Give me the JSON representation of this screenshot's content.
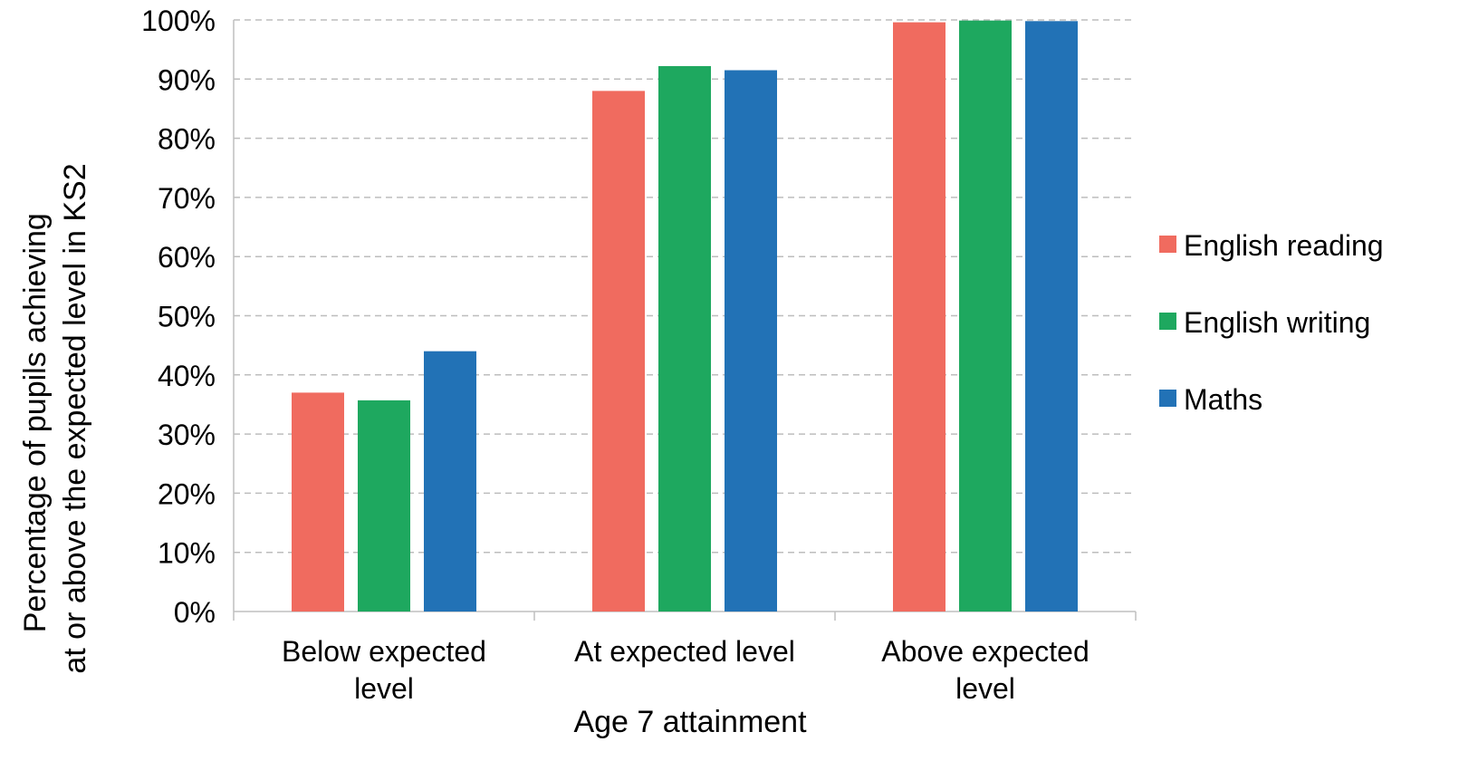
{
  "chart_data": {
    "type": "bar",
    "title": "",
    "xlabel": "Age 7 attainment",
    "ylabel_lines": [
      "Percentage of pupils achieving",
      "at or above the expected level in KS2"
    ],
    "categories": [
      [
        "Below expected",
        "level"
      ],
      [
        "At expected level"
      ],
      [
        "Above expected",
        "level"
      ]
    ],
    "series": [
      {
        "name": "English reading",
        "color": "#F06B5F",
        "values": [
          37,
          88,
          99.6
        ]
      },
      {
        "name": "English writing",
        "color": "#1EA85F",
        "values": [
          35.7,
          92.2,
          99.9
        ]
      },
      {
        "name": "Maths",
        "color": "#2272B6",
        "values": [
          44,
          91.5,
          99.8
        ]
      }
    ],
    "ylim": [
      0,
      100
    ],
    "yticks": [
      0,
      10,
      20,
      30,
      40,
      50,
      60,
      70,
      80,
      90,
      100
    ],
    "ytick_suffix": "%",
    "grid": true,
    "grid_style": "dashed",
    "legend_position": "right"
  }
}
